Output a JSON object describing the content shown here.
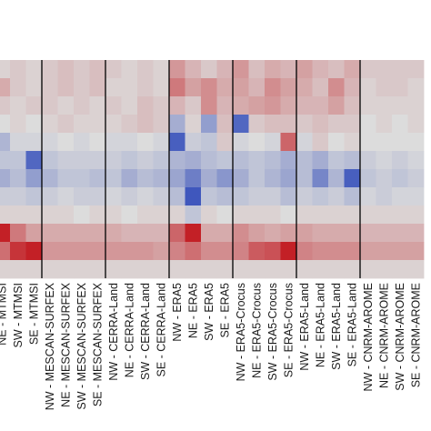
{
  "chart_data": {
    "type": "heatmap",
    "title": "",
    "xlabel": "",
    "ylabel": "",
    "color_scale": {
      "min": -1,
      "max": 1,
      "low_color": "#2340b8",
      "mid_color": "#dcdcdc",
      "high_color": "#c2161c",
      "colorbar_shown": false
    },
    "x_categories": [
      "NE - MTMSI",
      "SW - MTMSI",
      "SE - MTMSI",
      "NW - MESCAN-SURFEX",
      "NE - MESCAN-SURFEX",
      "SW - MESCAN-SURFEX",
      "SE - MESCAN-SURFEX",
      "NW - CERRA-Land",
      "NE - CERRA-Land",
      "SW - CERRA-Land",
      "SE - CERRA-Land",
      "NW - ERA5",
      "NE - ERA5",
      "SW - ERA5",
      "SE - ERA5",
      "NW - ERA5-Crocus",
      "NE - ERA5-Crocus",
      "SW - ERA5-Crocus",
      "SE - ERA5-Crocus",
      "NW - ERA5-Land",
      "NE - ERA5-Land",
      "SW - ERA5-Land",
      "SE - ERA5-Land",
      "NW - CNRM-AROME",
      "NE - CNRM-AROME",
      "SW - CNRM-AROME",
      "SE - CNRM-AROME"
    ],
    "group_boundaries_after": [
      3,
      7,
      11,
      15,
      19,
      23
    ],
    "y_rows_visible": 12,
    "values": [
      [
        0.05,
        0.1,
        0.05,
        0.1,
        0.15,
        0.1,
        0.15,
        0.1,
        0.05,
        0.1,
        0.05,
        0.35,
        0.2,
        0.1,
        0.2,
        0.35,
        0.15,
        0.25,
        0.2,
        0.3,
        0.2,
        0.15,
        0.25,
        0.1,
        0.1,
        0.1,
        0.1
      ],
      [
        0.25,
        0.1,
        0.05,
        0.1,
        0.15,
        0.1,
        0.15,
        0.05,
        0.05,
        0.1,
        0.05,
        0.5,
        0.3,
        0.4,
        0.25,
        0.3,
        0.2,
        0.4,
        0.3,
        0.25,
        0.15,
        0.4,
        0.2,
        0.05,
        0.1,
        0.1,
        0.05
      ],
      [
        0.1,
        0.05,
        0.1,
        0.1,
        0.05,
        0.1,
        0.05,
        0.1,
        0.05,
        0.15,
        0.1,
        0.2,
        0.1,
        0.4,
        0.2,
        0.25,
        0.3,
        0.35,
        0.25,
        0.2,
        0.2,
        0.3,
        0.15,
        0.05,
        0.05,
        0.05,
        0.05
      ],
      [
        0.0,
        0.05,
        0.0,
        0.05,
        0.1,
        0.05,
        0.05,
        0.05,
        0.1,
        0.15,
        0.1,
        -0.3,
        0.05,
        -0.4,
        0.15,
        -0.75,
        0.1,
        0.15,
        0.15,
        0.1,
        0.15,
        0.1,
        0.1,
        0.0,
        0.05,
        0.0,
        0.05
      ],
      [
        -0.25,
        -0.05,
        -0.05,
        -0.05,
        0.0,
        -0.05,
        0.0,
        -0.05,
        -0.05,
        0.0,
        -0.05,
        -0.8,
        -0.1,
        -0.15,
        0.1,
        -0.05,
        0.0,
        -0.05,
        0.6,
        -0.05,
        0.1,
        0.0,
        0.05,
        0.0,
        0.0,
        0.0,
        0.0
      ],
      [
        -0.15,
        -0.15,
        -0.75,
        -0.15,
        -0.1,
        -0.1,
        -0.1,
        -0.1,
        -0.15,
        -0.1,
        -0.15,
        -0.25,
        -0.3,
        -0.2,
        -0.15,
        -0.2,
        -0.15,
        -0.2,
        -0.3,
        -0.2,
        -0.3,
        -0.15,
        -0.2,
        -0.1,
        -0.05,
        -0.1,
        -0.05
      ],
      [
        -0.3,
        -0.2,
        -0.4,
        -0.25,
        -0.15,
        -0.15,
        -0.2,
        -0.15,
        -0.3,
        -0.2,
        -0.25,
        -0.35,
        -0.6,
        -0.3,
        -0.45,
        -0.3,
        -0.15,
        -0.25,
        -0.35,
        -0.2,
        -0.55,
        -0.25,
        -0.8,
        -0.15,
        -0.1,
        -0.15,
        -0.1
      ],
      [
        -0.1,
        -0.1,
        -0.15,
        -0.1,
        -0.05,
        -0.1,
        -0.1,
        -0.05,
        -0.1,
        -0.05,
        -0.1,
        -0.2,
        -0.85,
        -0.15,
        -0.2,
        -0.15,
        -0.1,
        -0.1,
        -0.2,
        -0.1,
        -0.15,
        -0.1,
        -0.2,
        -0.05,
        -0.1,
        -0.05,
        -0.05
      ],
      [
        0.05,
        0.05,
        0.05,
        0.05,
        0.05,
        0.0,
        0.05,
        0.05,
        0.0,
        0.05,
        0.05,
        0.05,
        -0.15,
        0.05,
        0.0,
        0.05,
        0.05,
        0.05,
        0.0,
        0.05,
        0.05,
        0.05,
        0.05,
        0.05,
        0.05,
        0.05,
        0.05
      ],
      [
        0.95,
        0.5,
        0.3,
        0.25,
        0.25,
        0.25,
        0.25,
        0.25,
        0.2,
        0.2,
        0.2,
        0.6,
        0.95,
        0.25,
        0.25,
        0.4,
        0.3,
        0.25,
        0.3,
        0.3,
        0.25,
        0.25,
        0.25,
        0.2,
        0.2,
        0.2,
        0.2
      ],
      [
        0.55,
        0.85,
        0.95,
        0.35,
        0.35,
        0.35,
        0.35,
        0.35,
        0.35,
        0.35,
        0.3,
        0.45,
        0.55,
        0.4,
        0.4,
        0.45,
        0.65,
        0.7,
        0.95,
        0.45,
        0.4,
        0.4,
        0.4,
        0.3,
        0.3,
        0.3,
        0.3
      ],
      [
        0.05,
        0.05,
        0.05,
        0.05,
        0.05,
        0.05,
        0.05,
        0.05,
        0.05,
        0.05,
        0.05,
        0.05,
        0.05,
        0.05,
        0.05,
        0.05,
        0.05,
        0.05,
        0.05,
        0.05,
        0.05,
        0.05,
        0.05,
        0.05,
        0.05,
        0.05,
        0.05
      ]
    ]
  }
}
